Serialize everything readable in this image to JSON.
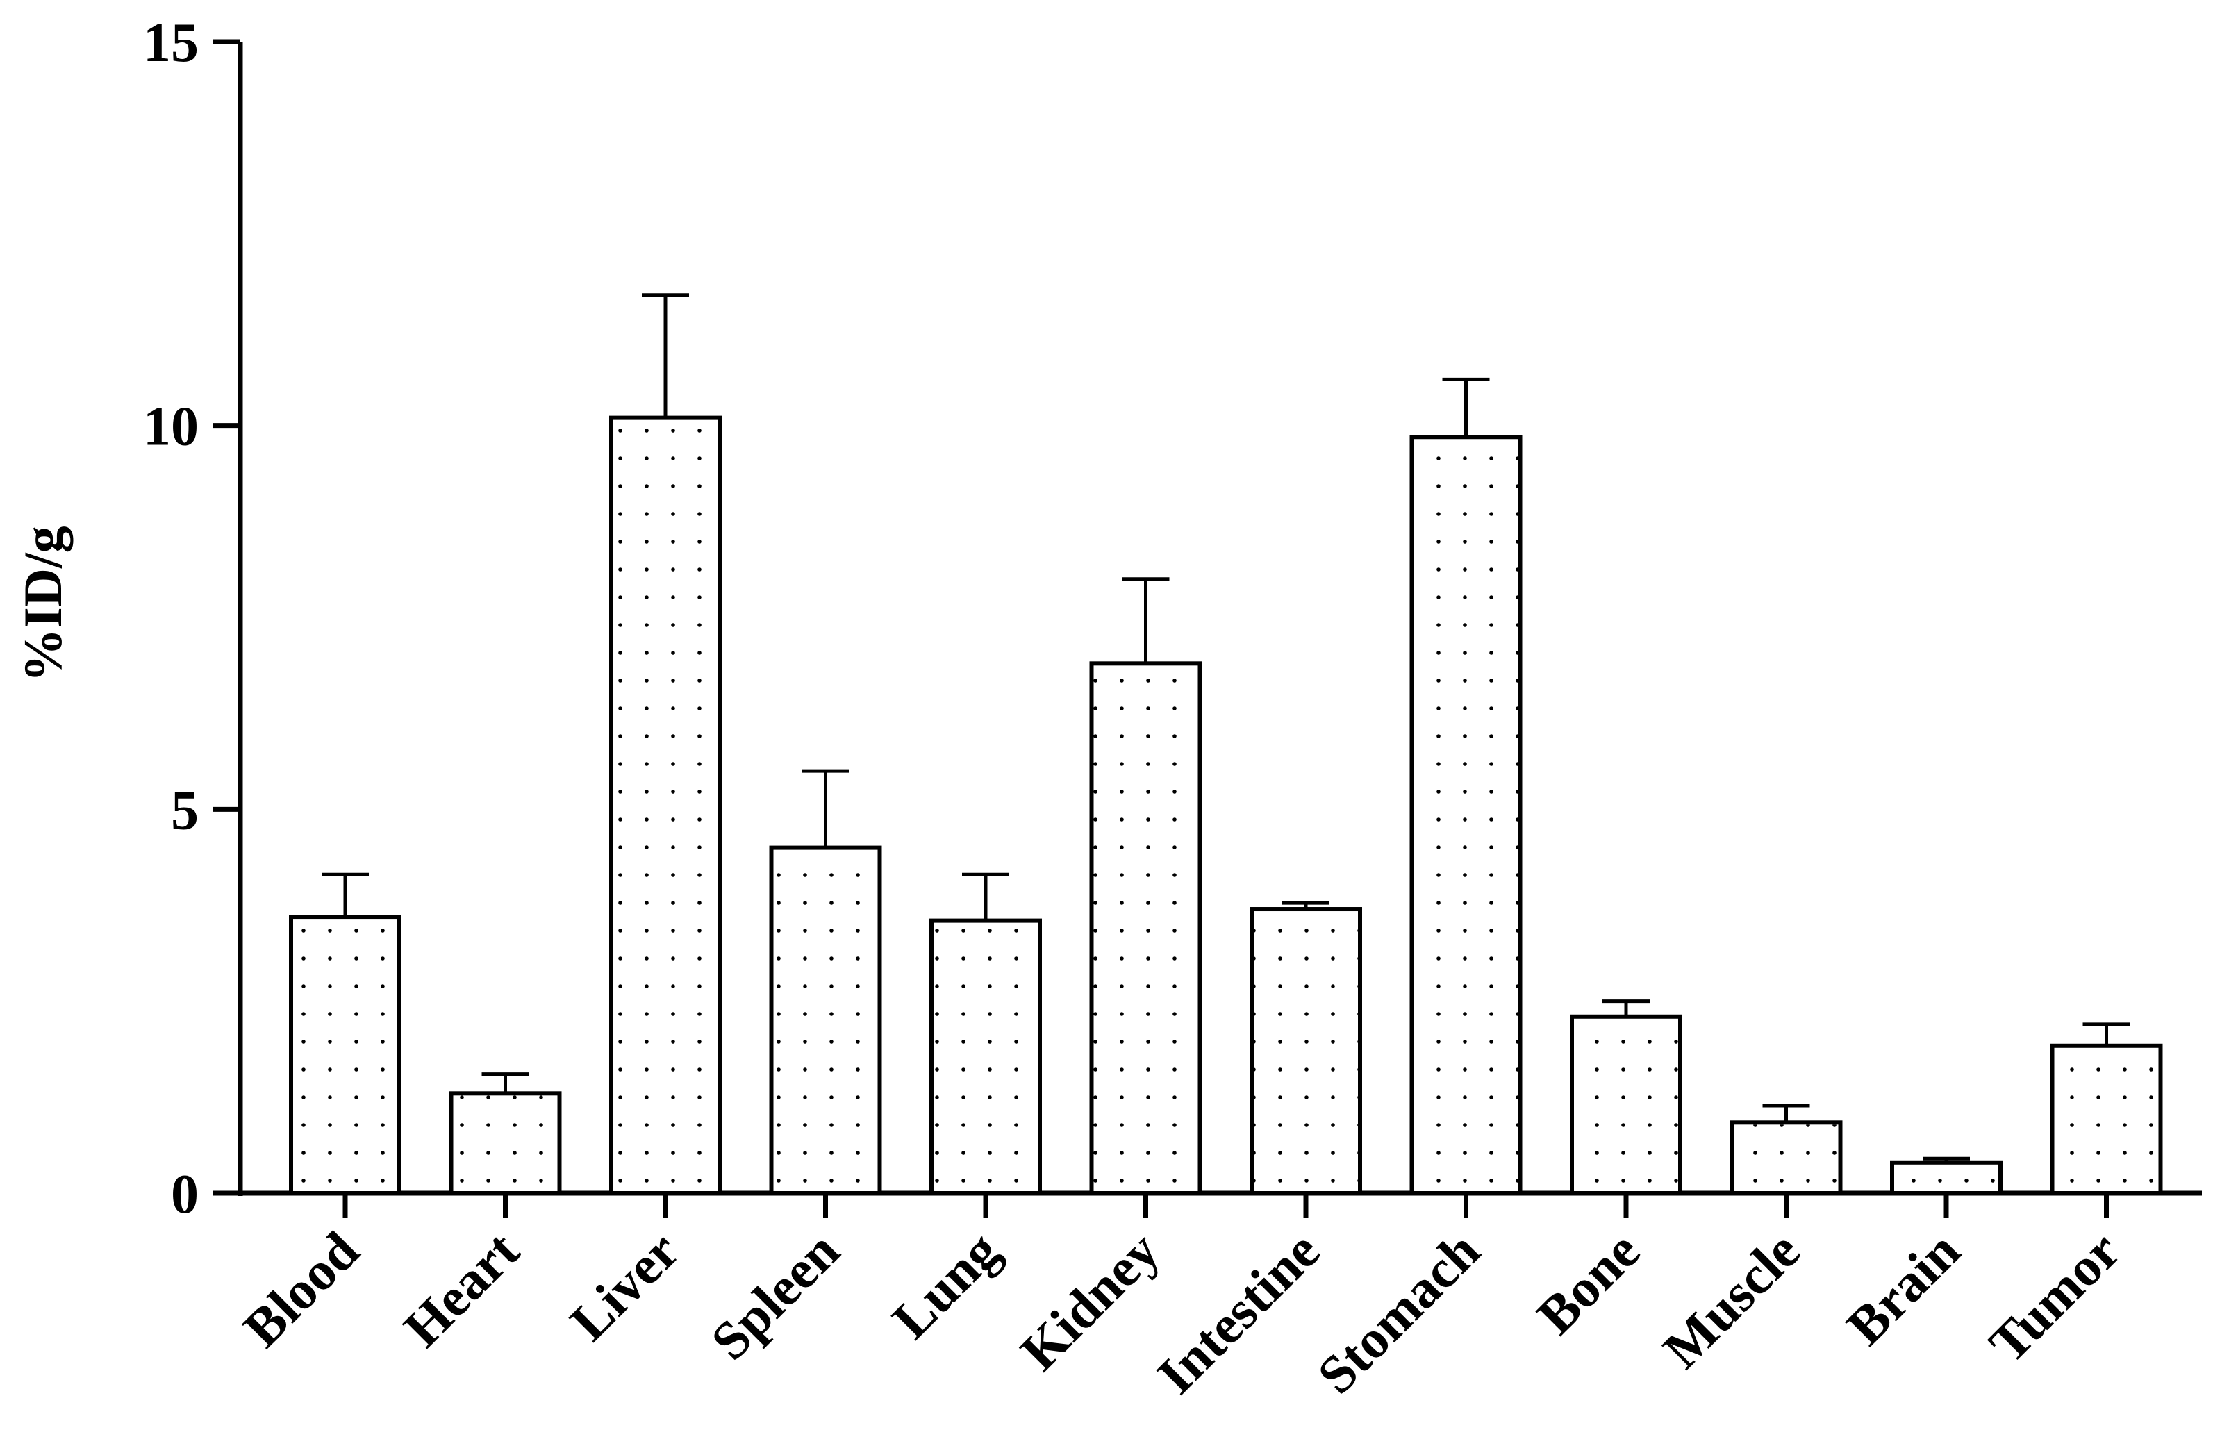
{
  "chart_data": {
    "type": "bar",
    "title": "",
    "xlabel": "",
    "ylabel": "%ID/g",
    "ylim": [
      0,
      15
    ],
    "yticks": [
      0,
      5,
      10,
      15
    ],
    "grid": false,
    "categories": [
      "Blood",
      "Heart",
      "Liver",
      "Spleen",
      "Lung",
      "Kidney",
      "Intestine",
      "Stomach",
      "Bone",
      "Muscle",
      "Brain",
      "Tumor"
    ],
    "values": [
      3.6,
      1.3,
      10.1,
      4.5,
      3.55,
      6.9,
      3.7,
      9.85,
      2.3,
      0.92,
      0.4,
      1.92
    ],
    "errors": [
      0.55,
      0.25,
      1.6,
      1.0,
      0.6,
      1.1,
      0.08,
      0.75,
      0.2,
      0.22,
      0.05,
      0.28
    ],
    "colors": {
      "bar_fill": "#ffffff",
      "dot": "#000000",
      "stroke": "#000000"
    }
  }
}
